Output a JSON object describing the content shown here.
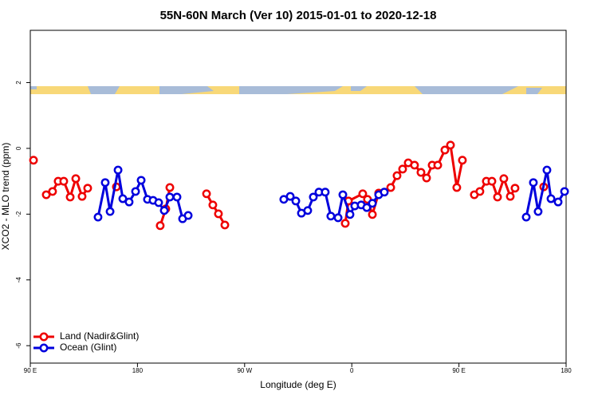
{
  "chart_data": {
    "type": "line",
    "title": "55N-60N March (Ver 10)   2015-01-01 to 2020-12-18",
    "x_label": "Longitude (deg E)",
    "y_label": "XCO2 - MLO trend (ppm)",
    "xlim": [
      90,
      540
    ],
    "ylim": [
      -6.53,
      3.59
    ],
    "xticks": [
      {
        "value": 90,
        "label": "90 E"
      },
      {
        "value": 180,
        "label": "180"
      },
      {
        "value": 270,
        "label": "90 W"
      },
      {
        "value": 360,
        "label": "0"
      },
      {
        "value": 450,
        "label": "90 E"
      },
      {
        "value": 540,
        "label": "180"
      }
    ],
    "yticks": [
      2,
      0,
      -2,
      -4,
      -6
    ],
    "legend": "bottom-left",
    "series": [
      {
        "name": "Land (Nadir&Glint)",
        "color": "#ee0000",
        "x": [
          92.7,
          null,
          103.4,
          108.7,
          113.4,
          118.1,
          123.5,
          128.2,
          133.5,
          138.2,
          null,
          162.3,
          null,
          199.1,
          203.8,
          207.2,
          null,
          238,
          243.3,
          248,
          253.4,
          null,
          354.5,
          357.2,
          369.2,
          373.2,
          377.3,
          382.6,
          392.7,
          398,
          402.7,
          407.4,
          412.7,
          418.1,
          422.8,
          427.5,
          432.2,
          438.2,
          442.9,
          448.2,
          452.9,
          null,
          462.9,
          467.6,
          473,
          477.7,
          482.4,
          487.7,
          493.1,
          497.1,
          null,
          521.2
        ],
        "values": [
          -0.36,
          null,
          -1.41,
          -1.31,
          -1.0,
          -1.0,
          -1.48,
          -0.92,
          -1.46,
          -1.21,
          null,
          -1.17,
          null,
          -2.35,
          -1.84,
          -1.19,
          null,
          -1.38,
          -1.72,
          -1.99,
          -2.33,
          null,
          -2.28,
          -1.6,
          -1.38,
          -1.55,
          -2.01,
          -1.36,
          -1.19,
          -0.83,
          -0.63,
          -0.44,
          -0.51,
          -0.73,
          -0.9,
          -0.51,
          -0.51,
          -0.05,
          0.1,
          -1.19,
          -0.36,
          null,
          -1.41,
          -1.31,
          -1.0,
          -1.0,
          -1.48,
          -0.92,
          -1.46,
          -1.21,
          null,
          -1.17
        ]
      },
      {
        "name": "Ocean (Glint)",
        "color": "#0000dd",
        "x": [
          146.9,
          152.9,
          157,
          163.7,
          167.7,
          173,
          178.4,
          183.1,
          188.4,
          193.1,
          197.8,
          202.5,
          207.2,
          213.2,
          217.9,
          222.6,
          null,
          302.9,
          308.3,
          313,
          317.7,
          323,
          327.7,
          332.4,
          337.7,
          342.4,
          348.5,
          352.5,
          358.5,
          362.5,
          367.9,
          372.6,
          377.3,
          382.6,
          387.3,
          null,
          506.5,
          512.5,
          516.5,
          523.9,
          527.3,
          533.3,
          538.7
        ],
        "values": [
          -2.09,
          -1.04,
          -1.92,
          -0.66,
          -1.53,
          -1.63,
          -1.31,
          -0.97,
          -1.55,
          -1.58,
          -1.65,
          -1.89,
          -1.48,
          -1.48,
          -2.14,
          -2.04,
          null,
          -1.55,
          -1.46,
          -1.6,
          -1.97,
          -1.89,
          -1.48,
          -1.33,
          -1.33,
          -2.06,
          -2.11,
          -1.41,
          -2.01,
          -1.75,
          -1.72,
          -1.8,
          -1.67,
          -1.41,
          -1.33,
          null,
          -2.09,
          -1.04,
          -1.92,
          -0.66,
          -1.53,
          -1.63,
          -1.31
        ]
      }
    ]
  }
}
